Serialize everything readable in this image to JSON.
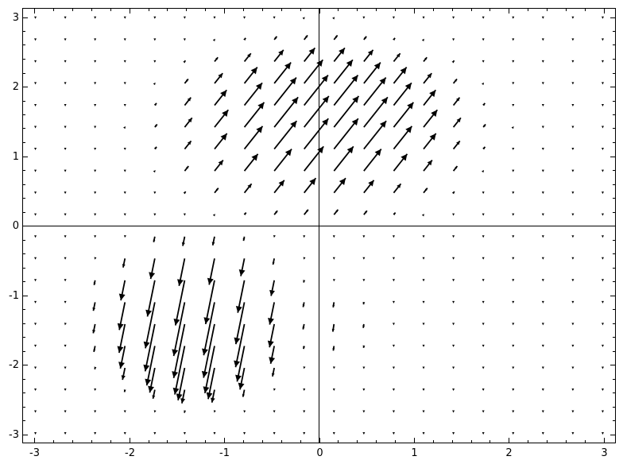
{
  "chart_data": {
    "type": "vector_field",
    "xlim": [
      -3.12,
      3.12
    ],
    "ylim": [
      -3.12,
      3.12
    ],
    "x_ticks": [
      -3,
      -2,
      -1,
      0,
      1,
      2,
      3
    ],
    "y_ticks": [
      -3,
      -2,
      -1,
      0,
      1,
      2,
      3
    ],
    "x_tick_labels": [
      "-3",
      "-2",
      "-1",
      "0",
      "1",
      "2",
      "3"
    ],
    "y_tick_labels": [
      "-3",
      "-2",
      "-1",
      "0",
      "1",
      "2",
      "3"
    ],
    "grid": false,
    "axes_through_origin": true,
    "arrow_color": "#000000",
    "field": {
      "grid_range": [
        -2.99,
        2.99
      ],
      "grid_count": 20,
      "regions": [
        {
          "quadrant": "upper",
          "x_range": [
            -1.8,
            1.8
          ],
          "y_range": [
            0.0,
            2.8
          ],
          "direction": [
            0.62,
            0.78
          ],
          "peak_magnitude": 0.42
        },
        {
          "quadrant": "lower-left",
          "x_range": [
            -2.5,
            -0.1
          ],
          "y_range": [
            -2.6,
            0.0
          ],
          "direction": [
            -0.2,
            -0.98
          ],
          "peak_magnitude": 0.58
        },
        {
          "quadrant": "lower-right",
          "x_range": [
            0.1,
            0.5
          ],
          "y_range": [
            -2.2,
            -0.6
          ],
          "direction": [
            -0.15,
            -0.99
          ],
          "peak_magnitude": 0.2
        }
      ]
    }
  }
}
